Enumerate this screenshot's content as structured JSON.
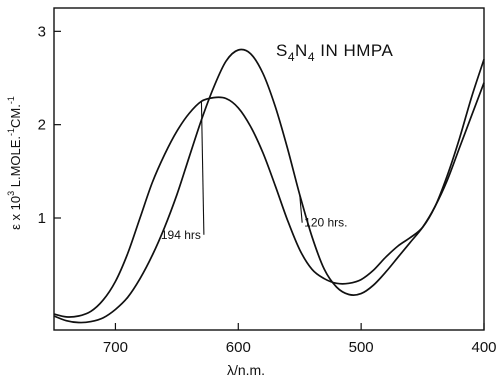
{
  "chart_data": {
    "type": "line",
    "title_parts": {
      "s": "S",
      "n": "N",
      "sub": "4",
      "rest": " IN HMPA"
    },
    "xlabel": "λ/n.m.",
    "ylabel": {
      "pre": "ε x 10",
      "exp3": "3",
      "mid1": " L.MOLE.",
      "exp1": "-1",
      "mid2": "CM.",
      "exp2": "-1"
    },
    "xlim": [
      750,
      400
    ],
    "ylim": [
      -0.2,
      3.25
    ],
    "x_ticks": [
      {
        "value": 700,
        "label": "700"
      },
      {
        "value": 600,
        "label": "600"
      },
      {
        "value": 500,
        "label": "500"
      },
      {
        "value": 400,
        "label": "400"
      }
    ],
    "y_ticks": [
      {
        "value": 1,
        "label": "1"
      },
      {
        "value": 2,
        "label": "2"
      },
      {
        "value": 3,
        "label": "3"
      }
    ],
    "grid": false,
    "series": [
      {
        "name": "120 hrs.",
        "x": [
          750,
          740,
          730,
          720,
          710,
          700,
          690,
          680,
          670,
          660,
          650,
          640,
          630,
          620,
          610,
          600,
          590,
          580,
          570,
          560,
          550,
          540,
          530,
          520,
          510,
          500,
          490,
          480,
          470,
          460,
          450,
          440,
          430,
          420,
          410,
          400
        ],
        "y": [
          -0.05,
          -0.1,
          -0.12,
          -0.11,
          -0.07,
          0.02,
          0.15,
          0.35,
          0.6,
          0.9,
          1.25,
          1.65,
          2.05,
          2.4,
          2.68,
          2.8,
          2.76,
          2.55,
          2.2,
          1.75,
          1.25,
          0.8,
          0.45,
          0.26,
          0.18,
          0.19,
          0.28,
          0.42,
          0.58,
          0.74,
          0.9,
          1.12,
          1.4,
          1.75,
          2.1,
          2.45
        ],
        "label_pos": [
          548,
          0.95
        ]
      },
      {
        "name": "194 hrs",
        "x": [
          750,
          740,
          730,
          720,
          710,
          700,
          690,
          680,
          670,
          660,
          650,
          640,
          630,
          620,
          610,
          600,
          590,
          580,
          570,
          560,
          550,
          540,
          530,
          520,
          510,
          500,
          490,
          480,
          470,
          460,
          450,
          440,
          430,
          420,
          410,
          400
        ],
        "y": [
          -0.03,
          -0.06,
          -0.05,
          0.0,
          0.12,
          0.32,
          0.62,
          1.0,
          1.38,
          1.68,
          1.93,
          2.12,
          2.25,
          2.29,
          2.28,
          2.18,
          1.98,
          1.7,
          1.35,
          0.98,
          0.66,
          0.45,
          0.35,
          0.3,
          0.3,
          0.34,
          0.44,
          0.58,
          0.7,
          0.79,
          0.9,
          1.12,
          1.45,
          1.85,
          2.3,
          2.7
        ],
        "label_pos": [
          628,
          0.82
        ]
      }
    ]
  }
}
